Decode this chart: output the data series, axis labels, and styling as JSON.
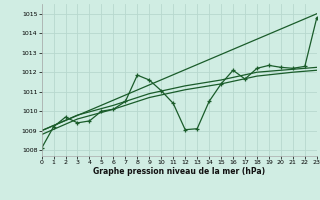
{
  "title": "Graphe pression niveau de la mer (hPa)",
  "bg_color": "#d0ede3",
  "grid_color": "#b8d8ce",
  "line_color": "#1a5c2a",
  "xlim": [
    0,
    23
  ],
  "ylim": [
    1007.7,
    1015.5
  ],
  "yticks": [
    1008,
    1009,
    1010,
    1011,
    1012,
    1013,
    1014,
    1015
  ],
  "xticks": [
    0,
    1,
    2,
    3,
    4,
    5,
    6,
    7,
    8,
    9,
    10,
    11,
    12,
    13,
    14,
    15,
    16,
    17,
    18,
    19,
    20,
    21,
    22,
    23
  ],
  "series": [
    {
      "x": [
        0,
        1,
        2,
        3,
        4,
        5,
        6,
        7,
        8,
        9,
        10,
        11,
        12,
        13,
        14,
        15,
        16,
        17,
        18,
        19,
        20,
        21,
        22,
        23
      ],
      "y": [
        1008.1,
        1009.2,
        1009.7,
        1009.4,
        1009.5,
        1010.0,
        1010.1,
        1010.5,
        1011.85,
        1011.6,
        1011.05,
        1010.4,
        1009.05,
        1009.1,
        1010.5,
        1011.4,
        1012.1,
        1011.65,
        1012.2,
        1012.35,
        1012.25,
        1012.2,
        1012.3,
        1014.8
      ],
      "has_marker": true,
      "lw": 0.9
    },
    {
      "x": [
        0,
        23
      ],
      "y": [
        1009.0,
        1015.0
      ],
      "has_marker": false,
      "lw": 0.9
    },
    {
      "x": [
        0,
        3,
        6,
        9,
        12,
        15,
        18,
        21,
        23
      ],
      "y": [
        1009.0,
        1009.8,
        1010.3,
        1010.9,
        1011.3,
        1011.6,
        1012.0,
        1012.15,
        1012.25
      ],
      "has_marker": false,
      "lw": 0.9
    },
    {
      "x": [
        0,
        3,
        6,
        9,
        12,
        15,
        18,
        21,
        23
      ],
      "y": [
        1008.8,
        1009.6,
        1010.1,
        1010.7,
        1011.1,
        1011.4,
        1011.8,
        1012.0,
        1012.1
      ],
      "has_marker": false,
      "lw": 0.9
    }
  ]
}
